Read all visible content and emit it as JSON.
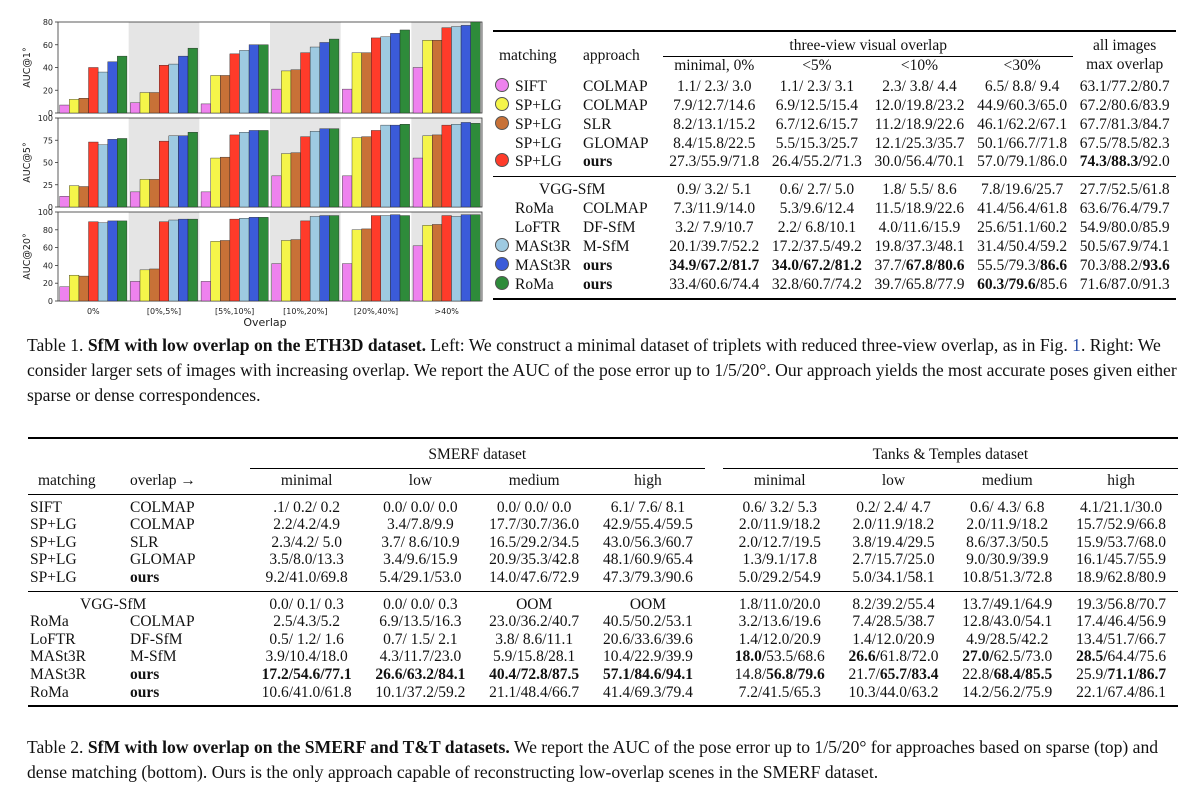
{
  "chart_data": {
    "type": "bar",
    "xlabel": "Overlap",
    "categories": [
      "0%",
      "[0%,5%]",
      "[5%,10%]",
      "[10%,20%]",
      "[20%,40%]",
      ">40%"
    ],
    "colors": [
      "#ee82ee",
      "#f5f54a",
      "#c87137",
      "#ff3b2a",
      "#9ecae1",
      "#3b5bd9",
      "#2e8b3a"
    ],
    "methods": [
      "SIFT",
      "SP+LG COLMAP",
      "SP+LG SLR",
      "SP+LG ours",
      "MASt3R M-SfM",
      "MASt3R ours",
      "RoMa ours"
    ],
    "panels": [
      {
        "ylabel": "AUC@1°",
        "ylim": [
          0,
          80
        ],
        "yticks": [
          0,
          20,
          40,
          60,
          80
        ],
        "series": [
          [
            7,
            9,
            8,
            21,
            21,
            40
          ],
          [
            12,
            18,
            33,
            37,
            53,
            64
          ],
          [
            13,
            18,
            33,
            38,
            53,
            64
          ],
          [
            40,
            42,
            52,
            53,
            66,
            75
          ],
          [
            36,
            43,
            55,
            58,
            67,
            76
          ],
          [
            45,
            50,
            60,
            62,
            70,
            77
          ],
          [
            50,
            57,
            60,
            65,
            73,
            80
          ]
        ]
      },
      {
        "ylabel": "AUC@5°",
        "ylim": [
          0,
          100
        ],
        "yticks": [
          0,
          25,
          50,
          75,
          100
        ],
        "series": [
          [
            12,
            17,
            17,
            35,
            35,
            55
          ],
          [
            24,
            31,
            55,
            60,
            78,
            80
          ],
          [
            23,
            31,
            56,
            61,
            79,
            81
          ],
          [
            73,
            74,
            81,
            79,
            86,
            92
          ],
          [
            70,
            80,
            84,
            85,
            92,
            93
          ],
          [
            76,
            80,
            86,
            88,
            92,
            95
          ],
          [
            77,
            84,
            86,
            88,
            93,
            94
          ]
        ]
      },
      {
        "ylabel": "AUC@20°",
        "ylim": [
          0,
          100
        ],
        "yticks": [
          0,
          20,
          40,
          60,
          80,
          100
        ],
        "series": [
          [
            16,
            22,
            22,
            42,
            42,
            62
          ],
          [
            29,
            35,
            67,
            68,
            80,
            85
          ],
          [
            28,
            36,
            68,
            69,
            81,
            86
          ],
          [
            89,
            89,
            92,
            90,
            96,
            96
          ],
          [
            88,
            91,
            93,
            95,
            96,
            95
          ],
          [
            90,
            92,
            94,
            96,
            97,
            97
          ],
          [
            90,
            92,
            94,
            96,
            96,
            97
          ]
        ]
      }
    ]
  },
  "table1": {
    "head": {
      "matching": "matching",
      "approach": "approach",
      "group": "three-view visual overlap",
      "cols": [
        "minimal, 0%",
        "<5%",
        "<10%",
        "<30%"
      ],
      "all1": "all images",
      "all2": "max overlap"
    },
    "rows": [
      {
        "dot": "#ee82ee",
        "m": "SIFT",
        "a": "COLMAP",
        "c": [
          "1.1/ 2.3/ 3.0",
          "1.1/ 2.3/ 3.1",
          "2.3/ 3.8/ 4.4",
          "6.5/ 8.8/ 9.4",
          "63.1/77.2/80.7"
        ]
      },
      {
        "dot": "#f5f54a",
        "m": "SP+LG",
        "a": "COLMAP",
        "c": [
          "7.9/12.7/14.6",
          "6.9/12.5/15.4",
          "12.0/19.8/23.2",
          "44.9/60.3/65.0",
          "67.2/80.6/83.9"
        ]
      },
      {
        "dot": "#c87137",
        "m": "SP+LG",
        "a": "SLR",
        "c": [
          "8.2/13.1/15.2",
          "6.7/12.6/15.7",
          "11.2/18.9/22.6",
          "46.1/62.2/67.1",
          "67.7/81.3/84.7"
        ]
      },
      {
        "dot": "",
        "m": "SP+LG",
        "a": "GLOMAP",
        "c": [
          "8.4/15.8/22.5",
          "5.5/15.3/25.7",
          "12.1/25.3/35.7",
          "50.1/66.7/71.8",
          "67.5/78.5/82.3"
        ]
      },
      {
        "dot": "#ff3b2a",
        "m": "SP+LG",
        "a": "ours",
        "c": [
          "27.3/55.9/71.8",
          "26.4/55.2/71.3",
          "30.0/56.4/70.1",
          "57.0/79.1/86.0",
          "74.3/88.3/92.0"
        ]
      },
      {
        "dot": "",
        "m": "VGG-SfM",
        "a": "",
        "c": [
          "0.9/ 3.2/ 5.1",
          "0.6/ 2.7/ 5.0",
          "1.8/ 5.5/ 8.6",
          "7.8/19.6/25.7",
          "27.7/52.5/61.8"
        ]
      },
      {
        "dot": "",
        "m": "RoMa",
        "a": "COLMAP",
        "c": [
          "7.3/11.9/14.0",
          "5.3/9.6/12.4",
          "11.5/18.9/22.6",
          "41.4/56.4/61.8",
          "63.6/76.4/79.7"
        ]
      },
      {
        "dot": "",
        "m": "LoFTR",
        "a": "DF-SfM",
        "c": [
          "3.2/ 7.9/10.7",
          "2.2/ 6.8/10.1",
          "4.0/11.6/15.9",
          "25.6/51.1/60.2",
          "54.9/80.0/85.9"
        ]
      },
      {
        "dot": "#9ecae1",
        "m": "MASt3R",
        "a": "M-SfM",
        "c": [
          "20.1/39.7/52.2",
          "17.2/37.5/49.2",
          "19.8/37.3/48.1",
          "31.4/50.4/59.2",
          "50.5/67.9/74.1"
        ]
      },
      {
        "dot": "#3b5bd9",
        "m": "MASt3R",
        "a": "ours",
        "c": [
          "34.9/67.2/81.7",
          "34.0/67.2/81.2",
          "37.7/67.8/80.6",
          "55.5/79.3/86.6",
          "70.3/88.2/93.6"
        ]
      },
      {
        "dot": "#2e8b3a",
        "m": "RoMa",
        "a": "ours",
        "c": [
          "33.4/60.6/74.4",
          "32.8/60.7/74.2",
          "39.7/65.8/77.9",
          "60.3/79.6/85.6",
          "71.6/87.0/91.3"
        ]
      }
    ]
  },
  "caption1": {
    "prefix": "Table 1. ",
    "bold": "SfM with low overlap on the ETH3D dataset.",
    "text_a": " Left: We construct a minimal dataset of triplets with reduced three-view overlap, as in Fig. ",
    "link": "1",
    "text_b": ". Right: We consider larger sets of images with increasing overlap. We report the AUC of the pose error up to 1/5/20°. Our approach yields the most accurate poses given either sparse or dense correspondences."
  },
  "table2": {
    "head": {
      "smerf": "SMERF dataset",
      "tt": "Tanks & Temples dataset",
      "matching": "matching",
      "overlap": "overlap →",
      "cols": [
        "minimal",
        "low",
        "medium",
        "high",
        "minimal",
        "low",
        "medium",
        "high"
      ]
    },
    "rows": [
      {
        "m": "SIFT",
        "a": "COLMAP",
        "c": [
          ".1/ 0.2/ 0.2",
          "0.0/ 0.0/ 0.0",
          "0.0/ 0.0/ 0.0",
          "6.1/ 7.6/ 8.1",
          "0.6/ 3.2/ 5.3",
          "0.2/ 2.4/ 4.7",
          "0.6/ 4.3/ 6.8",
          "4.1/21.1/30.0"
        ]
      },
      {
        "m": "SP+LG",
        "a": "COLMAP",
        "c": [
          "2.2/4.2/4.9",
          "3.4/7.8/9.9",
          "17.7/30.7/36.0",
          "42.9/55.4/59.5",
          "2.0/11.9/18.2",
          "2.0/11.9/18.2",
          "2.0/11.9/18.2",
          "15.7/52.9/66.8"
        ]
      },
      {
        "m": "SP+LG",
        "a": "SLR",
        "c": [
          "2.3/4.2/ 5.0",
          "3.7/ 8.6/10.9",
          "16.5/29.2/34.5",
          "43.0/56.3/60.7",
          "2.0/12.7/19.5",
          "3.8/19.4/29.5",
          "8.6/37.3/50.5",
          "15.9/53.7/68.0"
        ]
      },
      {
        "m": "SP+LG",
        "a": "GLOMAP",
        "c": [
          "3.5/8.0/13.3",
          "3.4/9.6/15.9",
          "20.9/35.3/42.8",
          "48.1/60.9/65.4",
          "1.3/9.1/17.8",
          "2.7/15.7/25.0",
          "9.0/30.9/39.9",
          "16.1/45.7/55.9"
        ]
      },
      {
        "m": "SP+LG",
        "a": "ours",
        "c": [
          "9.2/41.0/69.8",
          "5.4/29.1/53.0",
          "14.0/47.6/72.9",
          "47.3/79.3/90.6",
          "5.0/29.2/54.9",
          "5.0/34.1/58.1",
          "10.8/51.3/72.8",
          "18.9/62.8/80.9"
        ]
      },
      {
        "m": "VGG-SfM",
        "a": "",
        "c": [
          "0.0/ 0.1/ 0.3",
          "0.0/ 0.0/ 0.3",
          "OOM",
          "OOM",
          "1.8/11.0/20.0",
          "8.2/39.2/55.4",
          "13.7/49.1/64.9",
          "19.3/56.8/70.7"
        ]
      },
      {
        "m": "RoMa",
        "a": "COLMAP",
        "c": [
          "2.5/4.3/5.2",
          "6.9/13.5/16.3",
          "23.0/36.2/40.7",
          "40.5/50.2/53.1",
          "3.2/13.6/19.6",
          "7.4/28.5/38.7",
          "12.8/43.0/54.1",
          "17.4/46.4/56.9"
        ]
      },
      {
        "m": "LoFTR",
        "a": "DF-SfM",
        "c": [
          "0.5/ 1.2/ 1.6",
          "0.7/ 1.5/ 2.1",
          "3.8/ 8.6/11.1",
          "20.6/33.6/39.6",
          "1.4/12.0/20.9",
          "1.4/12.0/20.9",
          "4.9/28.5/42.2",
          "13.4/51.7/66.7"
        ]
      },
      {
        "m": "MASt3R",
        "a": "M-SfM",
        "c": [
          "3.9/10.4/18.0",
          "4.3/11.7/23.0",
          "5.9/15.8/28.1",
          "10.4/22.9/39.9",
          "18.0/53.5/68.6",
          "26.6/61.8/72.0",
          "27.0/62.5/73.0",
          "28.5/64.4/75.6"
        ]
      },
      {
        "m": "MASt3R",
        "a": "ours",
        "c": [
          "17.2/54.6/77.1",
          "26.6/63.2/84.1",
          "40.4/72.8/87.5",
          "57.1/84.6/94.1",
          "14.8/56.8/79.6",
          "21.7/65.7/83.4",
          "22.8/68.4/85.5",
          "25.9/71.1/86.7"
        ]
      },
      {
        "m": "RoMa",
        "a": "ours",
        "c": [
          "10.6/41.0/61.8",
          "10.1/37.2/59.2",
          "21.1/48.4/66.7",
          "41.4/69.3/79.4",
          "7.2/41.5/65.3",
          "10.3/44.0/63.2",
          "14.2/56.2/75.9",
          "22.1/67.4/86.1"
        ]
      }
    ]
  },
  "caption2": {
    "prefix": "Table 2. ",
    "bold": "SfM with low overlap on the SMERF and T&T datasets.",
    "text": " We report the AUC of the pose error up to 1/5/20° for approaches based on sparse (top) and dense matching (bottom). Ours is the only approach capable of reconstructing low-overlap scenes in the SMERF dataset."
  }
}
